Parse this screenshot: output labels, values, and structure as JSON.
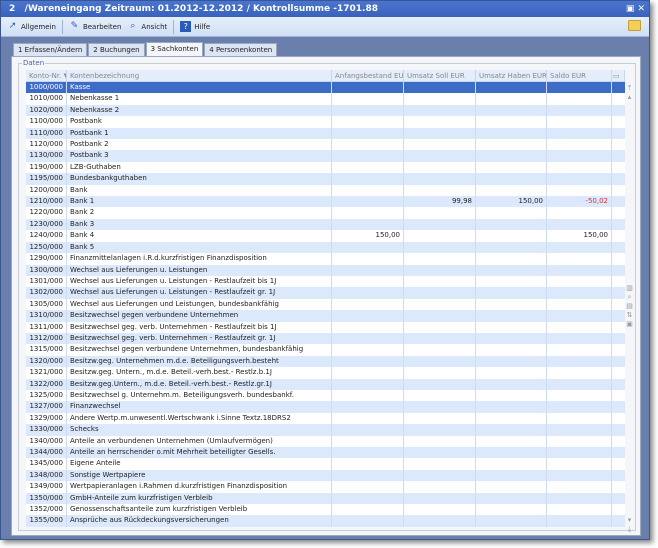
{
  "window": {
    "title": "2   /Wareneingang Zeitraum: 01.2012-12.2012 / Kontrollsumme -1701.88",
    "controls": "▣ ✕"
  },
  "toolbar": {
    "items": [
      {
        "label": "Allgemein",
        "icon": "arrow-icon"
      },
      {
        "label": "Bearbeiten",
        "icon": "edit-icon"
      },
      {
        "label": "Ansicht",
        "icon": "view-icon"
      },
      {
        "label": "Hilfe",
        "icon": "help-icon"
      }
    ]
  },
  "tabs": [
    {
      "label": "1 Erfassen/Ändern"
    },
    {
      "label": "2 Buchungen"
    },
    {
      "label": "3 Sachkonten",
      "active": true
    },
    {
      "label": "4 Personenkonten"
    }
  ],
  "group_label": "Daten",
  "table": {
    "columns": [
      "Konto-Nr. ▼",
      "Kontenbezeichnung",
      "Anfangsbestand EUR",
      "Umsatz Soll EUR",
      "Umsatz Haben EUR",
      "Saldo EUR"
    ],
    "rows": [
      [
        "1000/000",
        "Kasse",
        "",
        "",
        "",
        ""
      ],
      [
        "1010/000",
        "Nebenkasse 1",
        "",
        "",
        "",
        ""
      ],
      [
        "1020/000",
        "Nebenkasse 2",
        "",
        "",
        "",
        ""
      ],
      [
        "1100/000",
        "Postbank",
        "",
        "",
        "",
        ""
      ],
      [
        "1110/000",
        "Postbank 1",
        "",
        "",
        "",
        ""
      ],
      [
        "1120/000",
        "Postbank 2",
        "",
        "",
        "",
        ""
      ],
      [
        "1130/000",
        "Postbank 3",
        "",
        "",
        "",
        ""
      ],
      [
        "1190/000",
        "LZB-Guthaben",
        "",
        "",
        "",
        ""
      ],
      [
        "1195/000",
        "Bundesbankguthaben",
        "",
        "",
        "",
        ""
      ],
      [
        "1200/000",
        "Bank",
        "",
        "",
        "",
        ""
      ],
      [
        "1210/000",
        "Bank 1",
        "",
        "99,98",
        "150,00",
        "-50,02"
      ],
      [
        "1220/000",
        "Bank 2",
        "",
        "",
        "",
        ""
      ],
      [
        "1230/000",
        "Bank 3",
        "",
        "",
        "",
        ""
      ],
      [
        "1240/000",
        "Bank 4",
        "150,00",
        "",
        "",
        "150,00"
      ],
      [
        "1250/000",
        "Bank 5",
        "",
        "",
        "",
        ""
      ],
      [
        "1290/000",
        "Finanzmittelanlagen i.R.d.kurzfristigen Finanzdisposition",
        "",
        "",
        "",
        ""
      ],
      [
        "1300/000",
        "Wechsel aus Lieferungen u. Leistungen",
        "",
        "",
        "",
        ""
      ],
      [
        "1301/000",
        "Wechsel aus Lieferungen u. Leistungen - Restlaufzeit bis 1J",
        "",
        "",
        "",
        ""
      ],
      [
        "1302/000",
        "Wechsel aus Lieferungen u. Leistungen - Restlaufzeit gr. 1J",
        "",
        "",
        "",
        ""
      ],
      [
        "1305/000",
        "Wechsel aus Lieferungen und Leistungen, bundesbankfähig",
        "",
        "",
        "",
        ""
      ],
      [
        "1310/000",
        "Besitzwechsel gegen verbundene Unternehmen",
        "",
        "",
        "",
        ""
      ],
      [
        "1311/000",
        "Besitzwechsel  geg. verb. Unternehmen - Restlaufzeit bis 1J",
        "",
        "",
        "",
        ""
      ],
      [
        "1312/000",
        "Besitzwechsel  geg. verb. Unternehmen - Restlaufzeit gr. 1J",
        "",
        "",
        "",
        ""
      ],
      [
        "1315/000",
        "Besitzwechsel gegen verbundene Unternehmen, bundesbankfähig",
        "",
        "",
        "",
        ""
      ],
      [
        "1320/000",
        "Besitzw.geg. Unternehmen m.d.e. Beteiligungsverh.besteht",
        "",
        "",
        "",
        ""
      ],
      [
        "1321/000",
        "Besitzw.geg. Untern., m.d.e. Beteil.-verh.best.- Restlz.b.1J",
        "",
        "",
        "",
        ""
      ],
      [
        "1322/000",
        "Besitzw.geg.Untern., m.d.e. Beteil.-verh.best.- Restlz.gr.1J",
        "",
        "",
        "",
        ""
      ],
      [
        "1325/000",
        "Besitzwechsel g. Unternehm.m. Beteiligungsverh. bundesbankf.",
        "",
        "",
        "",
        ""
      ],
      [
        "1327/000",
        "Finanzwechsel",
        "",
        "",
        "",
        ""
      ],
      [
        "1329/000",
        "Andere Wertp.m.unwesentl.Wertschwank i.Sinne Textz.18DRS2",
        "",
        "",
        "",
        ""
      ],
      [
        "1330/000",
        "Schecks",
        "",
        "",
        "",
        ""
      ],
      [
        "1340/000",
        "Anteile an verbundenen Unternehmen (Umlaufvermögen)",
        "",
        "",
        "",
        ""
      ],
      [
        "1344/000",
        "Anteile an herrschender o.mit Mehrheit beteiligter Gesells.",
        "",
        "",
        "",
        ""
      ],
      [
        "1345/000",
        "Eigene Anteile",
        "",
        "",
        "",
        ""
      ],
      [
        "1348/000",
        "Sonstige Wertpapiere",
        "",
        "",
        "",
        ""
      ],
      [
        "1349/000",
        "Wertpapieranlagen i.Rahmen d.kurzfristigen Finanzdisposition",
        "",
        "",
        "",
        ""
      ],
      [
        "1350/000",
        "GmbH-Anteile zum kurzfristigen Verbleib",
        "",
        "",
        "",
        ""
      ],
      [
        "1352/000",
        "Genossenschaftsanteile zum kurzfristigen Verbleib",
        "",
        "",
        "",
        ""
      ],
      [
        "1355/000",
        "Ansprüche aus Rückdeckungsversicherungen",
        "",
        "",
        "",
        ""
      ]
    ],
    "selected_index": 0,
    "negative_color": "#e03030"
  }
}
